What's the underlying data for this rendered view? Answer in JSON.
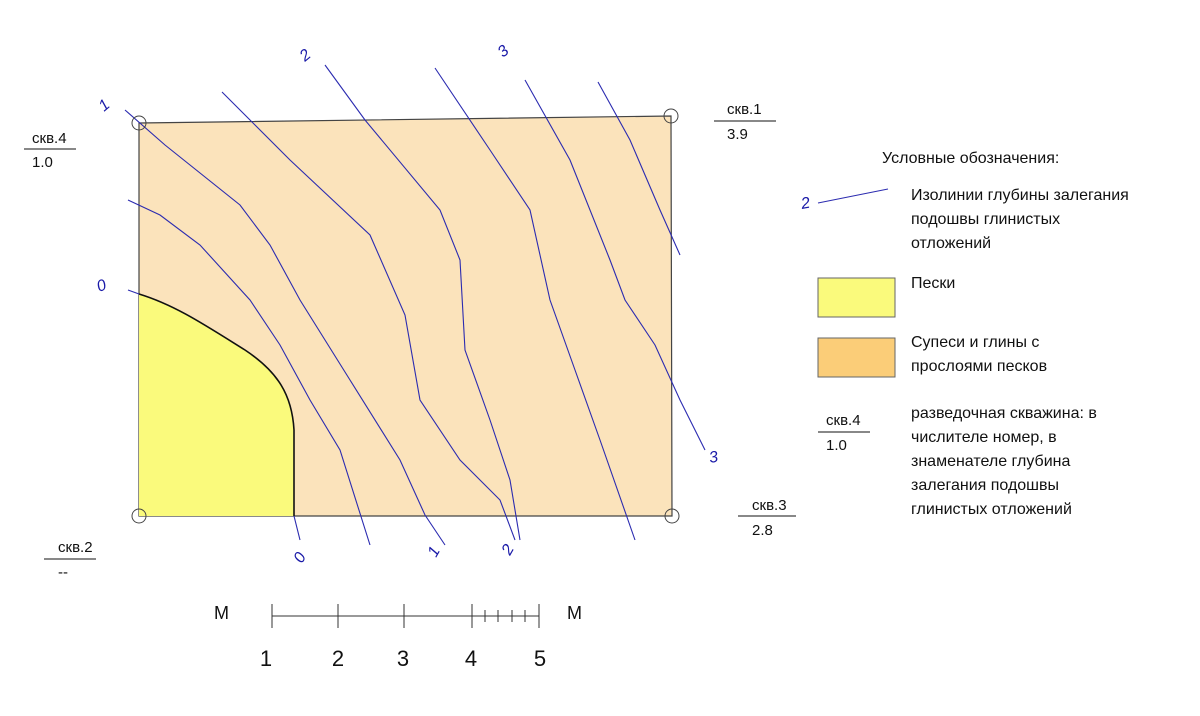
{
  "wells": [
    {
      "id": "well-1",
      "name": "скв.1",
      "depth": "3.9"
    },
    {
      "id": "well-2",
      "name": "скв.2",
      "depth": "--"
    },
    {
      "id": "well-3",
      "name": "скв.3",
      "depth": "2.8"
    },
    {
      "id": "well-4",
      "name": "скв.4",
      "depth": "1.0"
    }
  ],
  "isoline_labels": {
    "top": [
      "1",
      "2",
      "3"
    ],
    "left": [
      "0"
    ],
    "bottom": [
      "0",
      "1",
      "2"
    ],
    "right": [
      "3"
    ]
  },
  "legend": {
    "title": "Условные обозначения:",
    "isoline_sample_label": "2",
    "isoline_text": [
      "Изолинии глубины залегания",
      "подошвы глинистых",
      "отложений"
    ],
    "sand_text": "Пески",
    "loam_text": [
      "Супеси и глины с",
      "прослоями песков"
    ],
    "well_sample": {
      "name": "скв.4",
      "depth": "1.0"
    },
    "well_text": [
      "разведочная скважина: в",
      "числителе номер, в",
      "знаменателе глубина",
      "залегания подошвы",
      "глинистых отложений"
    ]
  },
  "scale": {
    "unit_left": "М",
    "unit_right": "М",
    "ticks": [
      "1",
      "2",
      "3",
      "4",
      "5"
    ]
  },
  "colors": {
    "sand": "#fafa7c",
    "loam": "#fbe3bb",
    "loam_legend": "#fbcd78",
    "isoline": "#2b2bb0"
  }
}
